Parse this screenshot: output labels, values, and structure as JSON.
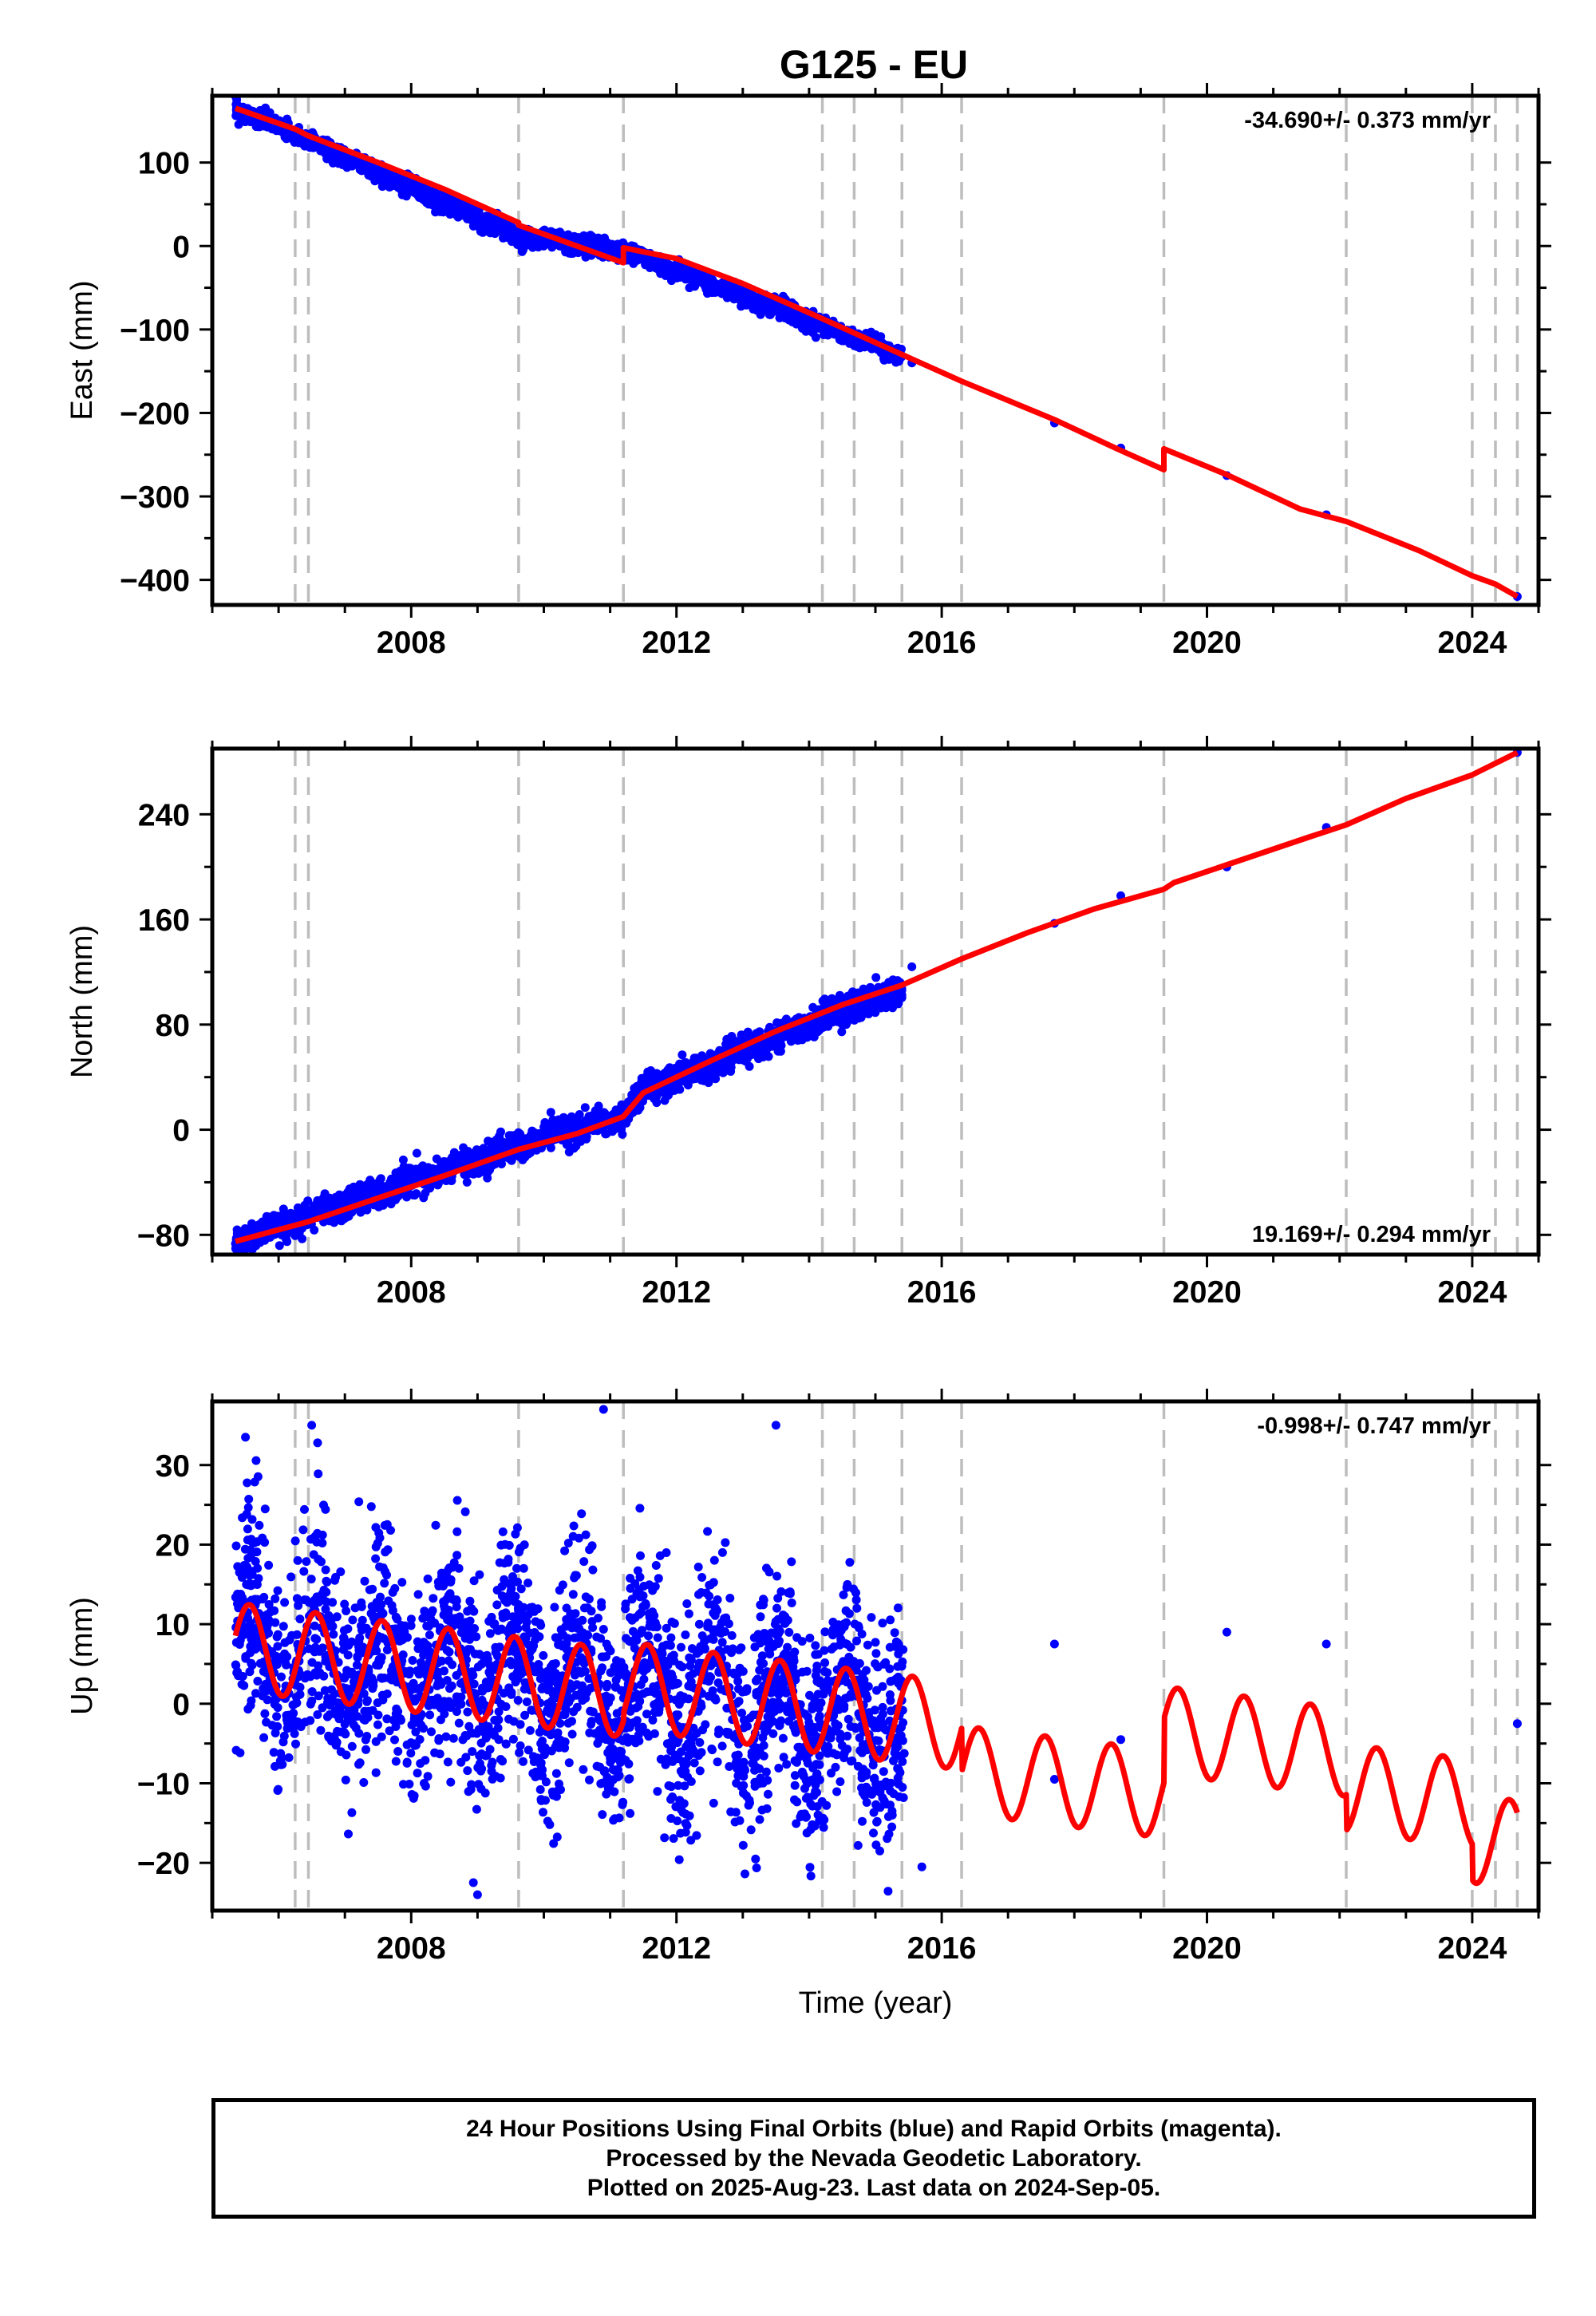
{
  "title": "G125 - EU",
  "chart_data": [
    {
      "type": "scatter",
      "component": "East",
      "ylabel": "East (mm)",
      "xlabel": "",
      "rate_text": "-34.690+/- 0.373 mm/yr",
      "rate_position": "top-right",
      "xlim": [
        2005.0,
        2025.0
      ],
      "ylim": [
        -430,
        180
      ],
      "x_ticks": [
        2008,
        2012,
        2016,
        2020,
        2024
      ],
      "y_ticks": [
        100,
        0,
        -100,
        -200,
        -300,
        -400
      ],
      "y_tick_labels": [
        "100",
        "0",
        "−100",
        "−200",
        "−300",
        "−400"
      ],
      "points_color": "#0000ff",
      "model_color": "#ff0000",
      "model": {
        "x": [
          2005.35,
          2006.25,
          2006.45,
          2007.5,
          2008.5,
          2009.62,
          2009.62,
          2011.2,
          2011.2,
          2012.0,
          2013.0,
          2014.0,
          2015.4,
          2016.3,
          2017.7,
          2018.7,
          2019.35,
          2019.35,
          2020.3,
          2021.4,
          2022.1,
          2023.2,
          2024.0,
          2024.35,
          2024.68
        ],
        "y": [
          165,
          140,
          132,
          100,
          68,
          28,
          25,
          -20,
          -2,
          -15,
          -45,
          -80,
          -130,
          -162,
          -208,
          -245,
          -268,
          -243,
          -274,
          -315,
          -330,
          -365,
          -395,
          -405,
          -420
        ]
      },
      "observations": {
        "segments": [
          [
            2005.35,
            165,
            2009.62,
            12
          ],
          [
            2009.62,
            12,
            2011.2,
            -5
          ],
          [
            2011.2,
            -5,
            2015.4,
            -132
          ]
        ],
        "spread": 5,
        "sparse": [
          [
            2015.55,
            -140
          ],
          [
            2017.7,
            -212
          ],
          [
            2018.7,
            -242
          ],
          [
            2020.3,
            -275
          ],
          [
            2021.8,
            -322
          ],
          [
            2024.68,
            -420
          ]
        ]
      }
    },
    {
      "type": "scatter",
      "component": "North",
      "ylabel": "North (mm)",
      "xlabel": "",
      "rate_text": "19.169+/- 0.294 mm/yr",
      "rate_position": "bottom-right",
      "xlim": [
        2005.0,
        2025.0
      ],
      "ylim": [
        -95,
        290
      ],
      "x_ticks": [
        2008,
        2012,
        2016,
        2020,
        2024
      ],
      "y_ticks": [
        240,
        160,
        80,
        0,
        -80
      ],
      "y_tick_labels": [
        "240",
        "160",
        "80",
        "0",
        "−80"
      ],
      "points_color": "#0000ff",
      "model_color": "#ff0000",
      "model": {
        "x": [
          2005.35,
          2006.45,
          2007.5,
          2008.5,
          2009.62,
          2010.5,
          2011.2,
          2011.5,
          2012.5,
          2013.5,
          2014.5,
          2015.4,
          2016.3,
          2017.3,
          2018.3,
          2019.35,
          2019.5,
          2020.5,
          2021.5,
          2022.1,
          2023.0,
          2024.0,
          2024.68
        ],
        "y": [
          -85,
          -70,
          -52,
          -35,
          -15,
          -3,
          10,
          28,
          52,
          75,
          95,
          110,
          130,
          150,
          168,
          183,
          188,
          205,
          222,
          232,
          252,
          270,
          287
        ]
      },
      "observations": {
        "segments": [
          [
            2005.35,
            -85,
            2009.62,
            -12
          ],
          [
            2009.62,
            -12,
            2011.2,
            10
          ],
          [
            2011.2,
            10,
            2011.5,
            30
          ],
          [
            2011.5,
            30,
            2015.4,
            108
          ]
        ],
        "spread": 5,
        "sparse": [
          [
            2015.55,
            124
          ],
          [
            2017.7,
            157
          ],
          [
            2018.7,
            178
          ],
          [
            2020.3,
            200
          ],
          [
            2021.8,
            230
          ],
          [
            2024.68,
            287
          ]
        ]
      }
    },
    {
      "type": "scatter",
      "component": "Up",
      "ylabel": "Up (mm)",
      "xlabel": "Time (year)",
      "rate_text": "-0.998+/- 0.747 mm/yr",
      "rate_position": "top-right",
      "xlim": [
        2005.0,
        2025.0
      ],
      "ylim": [
        -26,
        38
      ],
      "x_ticks": [
        2008,
        2012,
        2016,
        2020,
        2024
      ],
      "y_ticks": [
        30,
        20,
        10,
        0,
        -10,
        -20
      ],
      "y_tick_labels": [
        "30",
        "20",
        "10",
        "0",
        "−10",
        "−20"
      ],
      "points_color": "#0000ff",
      "model_color": "#ff0000",
      "model": {
        "annual_amplitude": 5.5,
        "annual_phase_year": 2005.5,
        "rate_per_year": -1.0,
        "offsets": [
          [
            2005.35,
            2.5
          ],
          [
            2009.62,
            2.5
          ],
          [
            2011.2,
            3.5
          ],
          [
            2016.3,
            -2.0
          ],
          [
            2019.35,
            6.0
          ],
          [
            2022.1,
            1.5
          ],
          [
            2024.0,
            -3.0
          ]
        ],
        "x_start": 2005.35,
        "x_end": 2024.68
      },
      "observations": {
        "x_range": [
          2005.35,
          2015.45
        ],
        "count": 2600,
        "spread": 6.5,
        "outliers": [
          [
            2005.5,
            33.5
          ],
          [
            2006.5,
            35.0
          ],
          [
            2010.9,
            37.0
          ],
          [
            2013.5,
            35.0
          ],
          [
            2009.0,
            -24.0
          ],
          [
            2015.7,
            -20.5
          ]
        ],
        "sparse": [
          [
            2017.7,
            7.5
          ],
          [
            2017.7,
            -9.5
          ],
          [
            2018.7,
            -4.5
          ],
          [
            2020.3,
            9.0
          ],
          [
            2021.8,
            7.5
          ],
          [
            2024.68,
            -2.5
          ]
        ]
      }
    }
  ],
  "offset_lines": [
    2006.25,
    2006.45,
    2009.62,
    2011.2,
    2014.2,
    2014.68,
    2015.4,
    2016.3,
    2019.35,
    2022.1,
    2024.0,
    2024.35,
    2024.68
  ],
  "footer": {
    "line1": "24 Hour Positions Using Final Orbits (blue) and Rapid Orbits (magenta).",
    "line2": "Processed by the Nevada Geodetic Laboratory.",
    "line3": "Plotted on 2025-Aug-23. Last data on 2024-Sep-05."
  }
}
